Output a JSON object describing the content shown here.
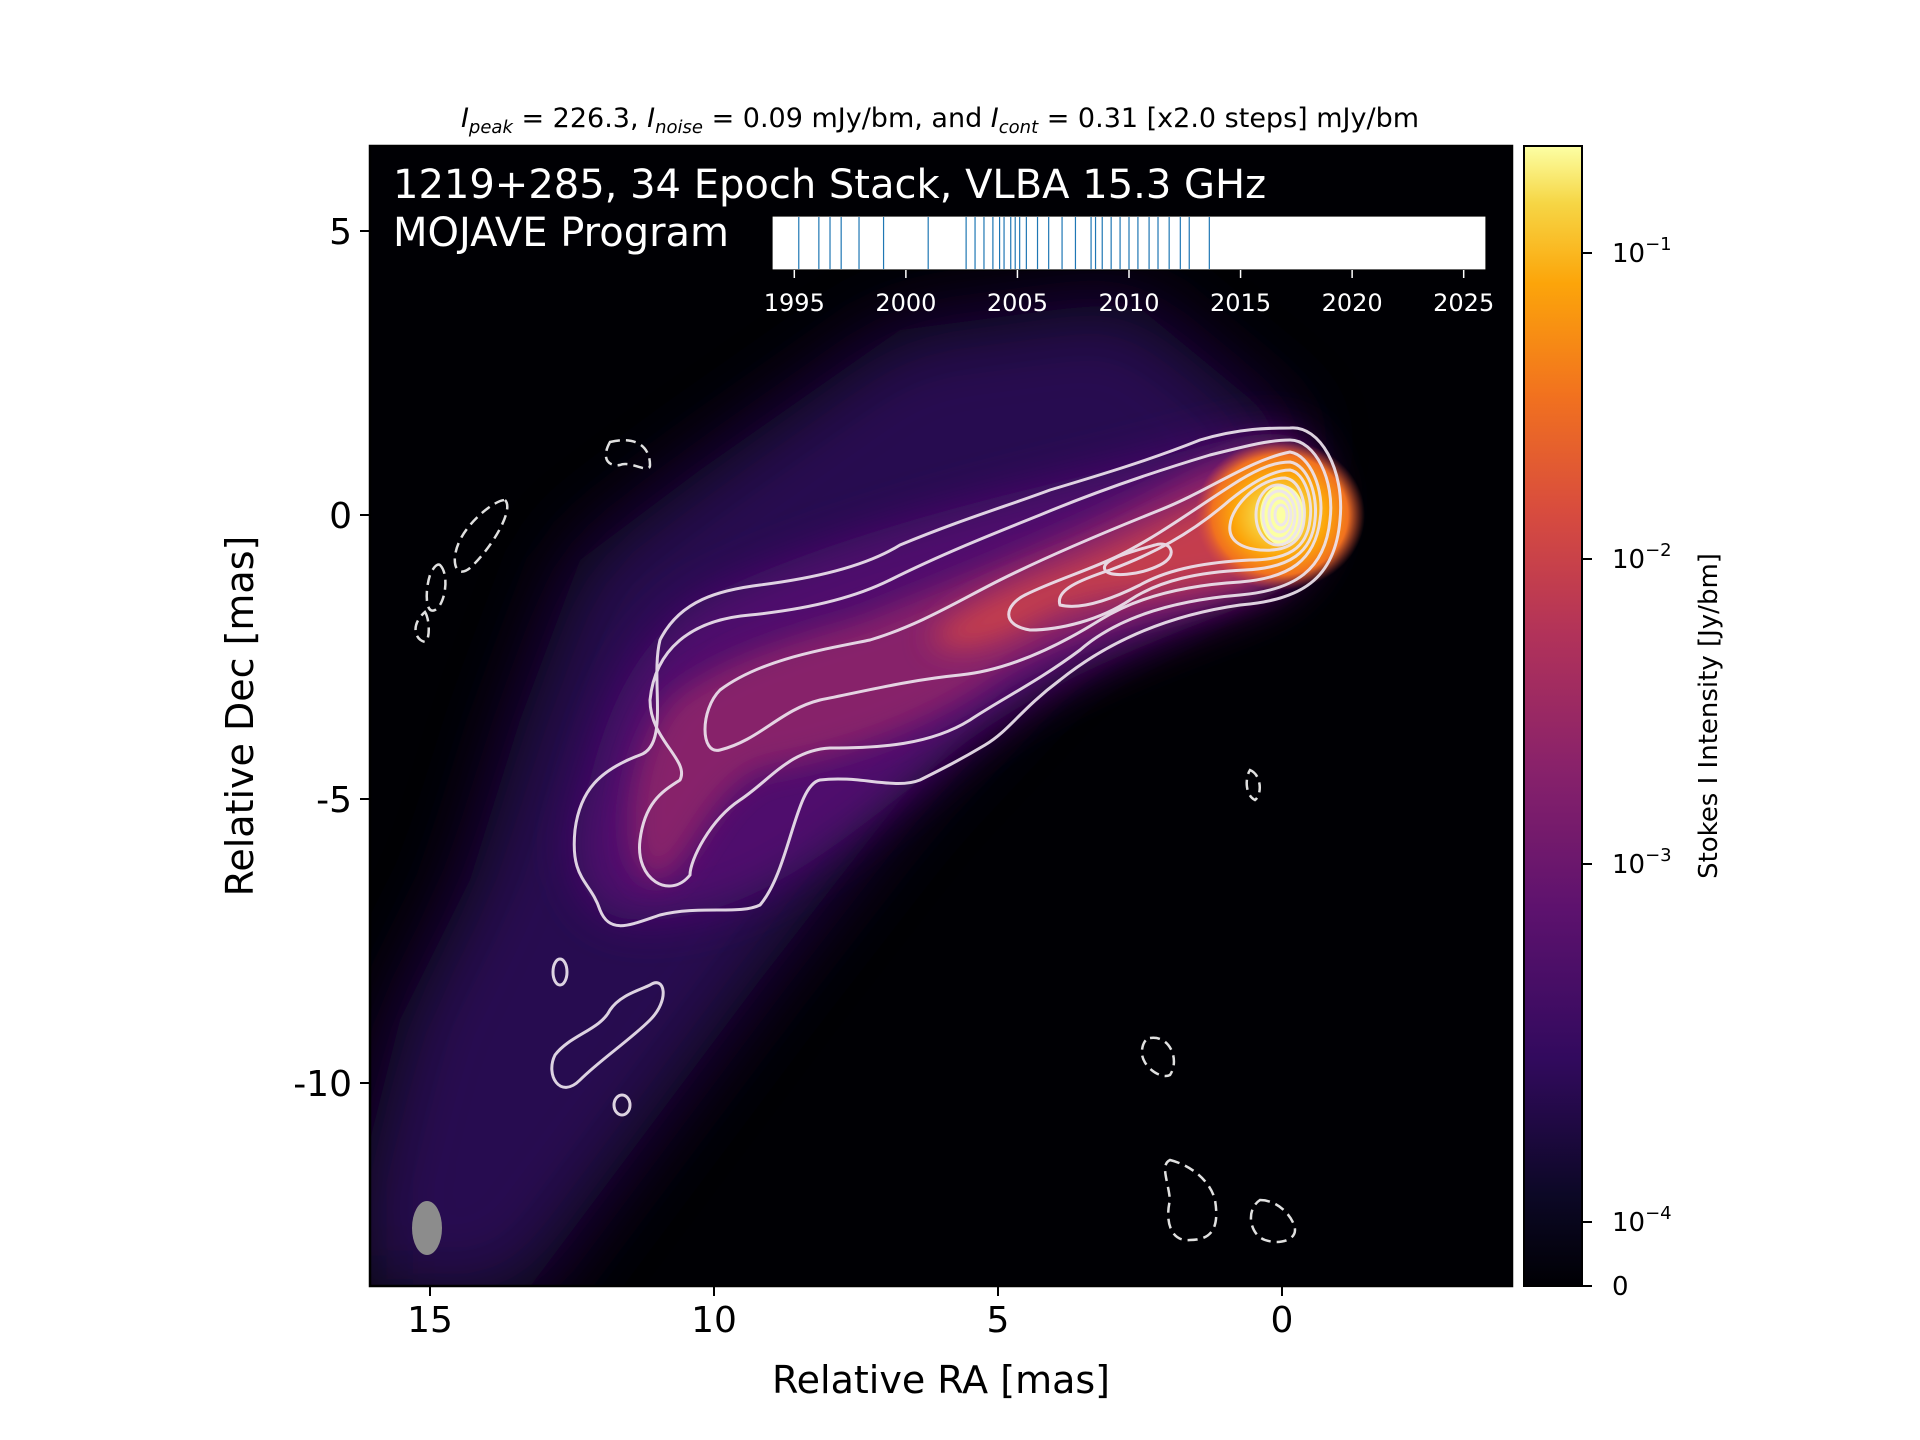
{
  "header": {
    "peak_label": "I",
    "peak_sub": "peak",
    "peak_text": " = 226.3, ",
    "noise_label": "I",
    "noise_sub": "noise",
    "noise_text": " = 0.09 mJy/bm, and ",
    "cont_label": "I",
    "cont_sub": "cont",
    "cont_text": " = 0.31 [x2.0 steps] mJy/bm"
  },
  "overlay": {
    "line1": "1219+285, 34 Epoch Stack, VLBA 15.3 GHz",
    "line2": "MOJAVE Program"
  },
  "colors": {
    "background": "#000004",
    "contour": "#ffffff",
    "beam": "#8c8c8c",
    "epoch_line": "#1f77b4"
  },
  "chart_data": [
    {
      "type": "heatmap",
      "xlabel": "Relative RA [mas]",
      "ylabel": "Relative Dec [mas]",
      "xlim": [
        16,
        -4
      ],
      "ylim": [
        -13.5,
        6.5
      ],
      "x_ticks": [
        15,
        10,
        5,
        0
      ],
      "x_tick_labels": [
        "15",
        "10",
        "5",
        "0"
      ],
      "y_ticks": [
        5,
        0,
        -5,
        -10
      ],
      "y_tick_labels": [
        "5",
        "0",
        "-5",
        "-10"
      ],
      "colormap": "inferno",
      "color_scale": "log",
      "peak_position_mas": [
        0,
        0
      ],
      "jet_ridge_mas": [
        [
          0,
          0
        ],
        [
          1,
          -0.3
        ],
        [
          2.3,
          -0.7
        ],
        [
          3.5,
          -1.3
        ],
        [
          5,
          -1.9
        ],
        [
          6.5,
          -2.5
        ],
        [
          8,
          -3
        ],
        [
          9.5,
          -3.5
        ],
        [
          10.5,
          -4.6
        ],
        [
          11,
          -6
        ],
        [
          11.4,
          -7
        ],
        [
          12,
          -8.5
        ],
        [
          13,
          -10.5
        ],
        [
          14.5,
          -12.5
        ]
      ],
      "beam_position_mas": [
        15.1,
        -12.7
      ],
      "beam_size_mas": [
        0.55,
        1.0
      ],
      "contour_base_mjy_bm": 0.31,
      "contour_step": 2.0,
      "grid": false
    },
    {
      "type": "bar",
      "title": "epochs",
      "xlim": [
        1994,
        2026
      ],
      "x_ticks": [
        1995,
        2000,
        2005,
        2010,
        2015,
        2020,
        2025
      ],
      "x_tick_labels": [
        "1995",
        "2000",
        "2005",
        "2010",
        "2015",
        "2020",
        "2025"
      ],
      "epochs": [
        1995.2,
        1996.1,
        1996.6,
        1997.1,
        1997.9,
        1999.0,
        2001.0,
        2002.7,
        2003.1,
        2003.5,
        2003.9,
        2004.2,
        2004.4,
        2004.7,
        2004.9,
        2005.1,
        2005.4,
        2005.9,
        2006.4,
        2007.0,
        2007.6,
        2008.3,
        2008.5,
        2008.8,
        2009.2,
        2009.6,
        2010.0,
        2010.4,
        2010.9,
        2011.3,
        2011.8,
        2012.3,
        2012.7,
        2013.6
      ]
    },
    {
      "type": "heatmap",
      "ylabel": "Stokes I Intensity [Jy/bm]",
      "color_scale": "symlog",
      "ylim": [
        0,
        0.25
      ],
      "ticks": [
        0,
        0.0001,
        0.001,
        0.01,
        0.1
      ],
      "tick_labels": [
        "0",
        "10",
        "10",
        "10",
        "10"
      ],
      "tick_exponents": [
        "",
        "−4",
        "−3",
        "−2",
        "−1"
      ]
    }
  ]
}
